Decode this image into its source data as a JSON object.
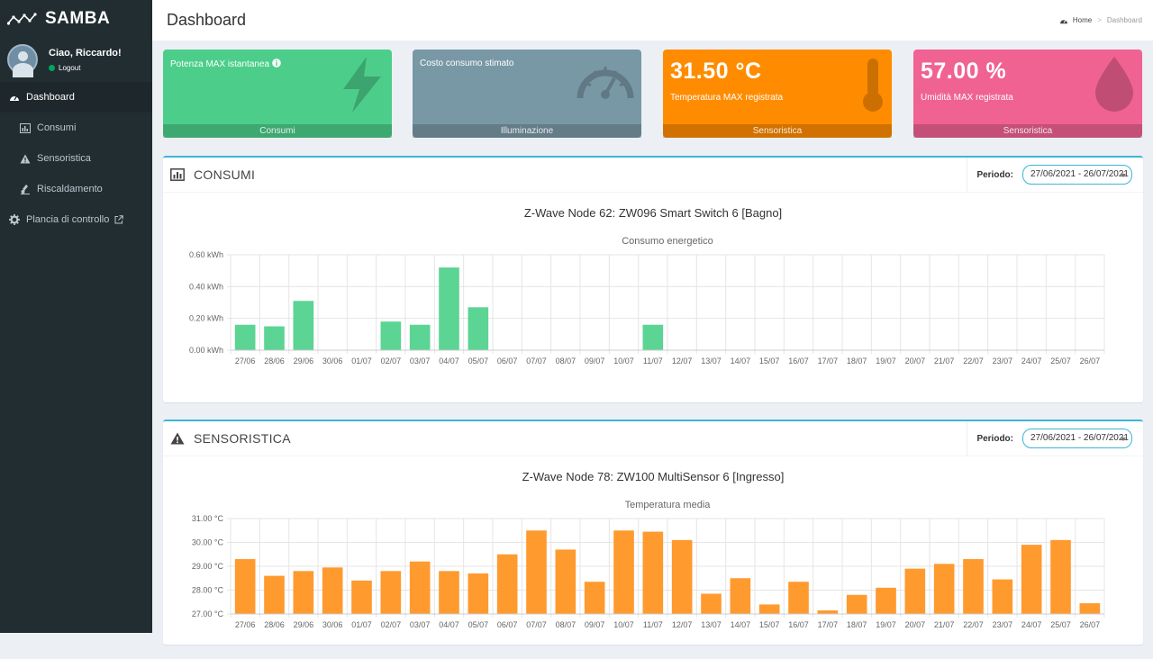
{
  "app": {
    "name": "SAMBA"
  },
  "user": {
    "greeting": "Ciao, Riccardo!",
    "logout": "Logout"
  },
  "menu": [
    {
      "label": "Dashboard",
      "icon": "dashboard-icon",
      "active": true
    },
    {
      "label": "Consumi",
      "icon": "bar-chart-icon"
    },
    {
      "label": "Sensoristica",
      "icon": "warning-icon"
    },
    {
      "label": "Riscaldamento",
      "icon": "thermometer-icon"
    },
    {
      "label": "Plancia di controllo",
      "icon": "gear-icon"
    }
  ],
  "header": {
    "title": "Dashboard"
  },
  "breadcrumb": {
    "home": "Home",
    "current": "Dashboard"
  },
  "small_boxes": [
    {
      "label": "Potenza MAX istantanea",
      "value": "",
      "footer": "Consumi",
      "color": "#4cce8a",
      "icon": "lightning-icon"
    },
    {
      "label": "Costo consumo stimato",
      "value": "",
      "footer": "Illuminazione",
      "color": "#7998a6",
      "icon": "speedometer-icon"
    },
    {
      "label": "Temperatura MAX registrata",
      "value": "31.50 °C",
      "footer": "Sensoristica",
      "color": "#ff8c00",
      "icon": "thermometer-icon"
    },
    {
      "label": "Umidità MAX registrata",
      "value": "57.00 %",
      "footer": "Sensoristica",
      "color": "#f06292",
      "icon": "drop-icon"
    }
  ],
  "consumi": {
    "title": "CONSUMI",
    "period_label": "Periodo:",
    "period_value": "27/06/2021 - 26/07/2021",
    "device": "Z-Wave Node 62: ZW096 Smart Switch 6 [Bagno]"
  },
  "sensoristica": {
    "title": "SENSORISTICA",
    "period_label": "Periodo:",
    "period_value": "27/06/2021 - 26/07/2021",
    "device": "Z-Wave Node 78: ZW100 MultiSensor 6 [Ingresso]"
  },
  "chart_data": [
    {
      "type": "bar",
      "title": "Consumo energetico",
      "categories": [
        "27/06",
        "28/06",
        "29/06",
        "30/06",
        "01/07",
        "02/07",
        "03/07",
        "04/07",
        "05/07",
        "06/07",
        "07/07",
        "08/07",
        "09/07",
        "10/07",
        "11/07",
        "12/07",
        "13/07",
        "14/07",
        "15/07",
        "16/07",
        "17/07",
        "18/07",
        "19/07",
        "20/07",
        "21/07",
        "22/07",
        "23/07",
        "24/07",
        "25/07",
        "26/07"
      ],
      "values": [
        0.16,
        0.15,
        0.31,
        0,
        0,
        0.18,
        0.16,
        0.52,
        0.27,
        0,
        0,
        0,
        0,
        0,
        0.16,
        0,
        0,
        0,
        0,
        0,
        0,
        0,
        0,
        0,
        0,
        0,
        0,
        0,
        0,
        0
      ],
      "ylim": [
        0,
        0.6
      ],
      "yticks": [
        "0.00 kWh",
        "0.20 kWh",
        "0.40 kWh",
        "0.60 kWh"
      ],
      "grid": true,
      "color": "#5cd494"
    },
    {
      "type": "bar",
      "title": "Temperatura media",
      "categories": [
        "27/06",
        "28/06",
        "29/06",
        "30/06",
        "01/07",
        "02/07",
        "03/07",
        "04/07",
        "05/07",
        "06/07",
        "07/07",
        "08/07",
        "09/07",
        "10/07",
        "11/07",
        "12/07",
        "13/07",
        "14/07",
        "15/07",
        "16/07",
        "17/07",
        "18/07",
        "19/07",
        "20/07",
        "21/07",
        "22/07",
        "23/07",
        "24/07",
        "25/07",
        "26/07"
      ],
      "values": [
        29.3,
        28.6,
        28.8,
        28.95,
        28.4,
        28.8,
        29.2,
        28.8,
        28.7,
        29.5,
        30.5,
        29.7,
        28.35,
        30.5,
        30.45,
        30.1,
        27.85,
        28.5,
        27.4,
        28.35,
        27.15,
        27.8,
        28.1,
        28.9,
        29.1,
        29.3,
        28.45,
        29.9,
        30.1,
        27.45
      ],
      "ylim": [
        27,
        31
      ],
      "yticks": [
        "27.00 °C",
        "28.00 °C",
        "29.00 °C",
        "30.00 °C",
        "31.00 °C"
      ],
      "grid": true,
      "color": "#ff9a2e"
    }
  ]
}
